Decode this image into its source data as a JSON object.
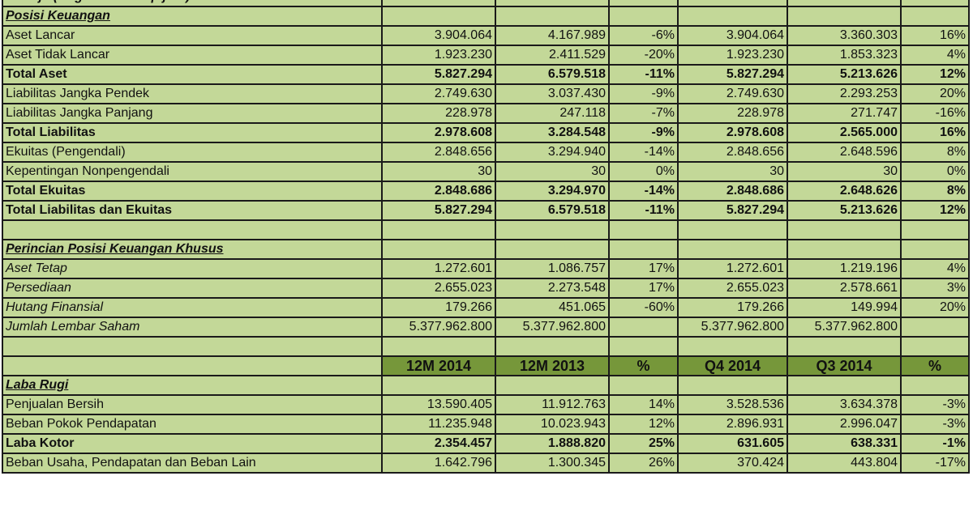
{
  "colors": {
    "cell_bg": "#c3d898",
    "header_bg": "#76973a",
    "grid": "#1a1a1a"
  },
  "rows": [
    {
      "type": "title",
      "label": "Kinerja (Angka dalam Rp juta)",
      "values": [
        "",
        "",
        "",
        "",
        "",
        ""
      ]
    },
    {
      "type": "section",
      "label": "Posisi Keuangan",
      "values": [
        "",
        "",
        "",
        "",
        "",
        ""
      ]
    },
    {
      "type": "normal",
      "label": "Aset Lancar",
      "values": [
        "3.904.064",
        "4.167.989",
        "-6%",
        "3.904.064",
        "3.360.303",
        "16%"
      ]
    },
    {
      "type": "normal",
      "label": "Aset Tidak Lancar",
      "values": [
        "1.923.230",
        "2.411.529",
        "-20%",
        "1.923.230",
        "1.853.323",
        "4%"
      ]
    },
    {
      "type": "bold",
      "label": "Total Aset",
      "values": [
        "5.827.294",
        "6.579.518",
        "-11%",
        "5.827.294",
        "5.213.626",
        "12%"
      ]
    },
    {
      "type": "normal",
      "label": "Liabilitas Jangka Pendek",
      "values": [
        "2.749.630",
        "3.037.430",
        "-9%",
        "2.749.630",
        "2.293.253",
        "20%"
      ]
    },
    {
      "type": "normal",
      "label": "Liabilitas Jangka Panjang",
      "values": [
        "228.978",
        "247.118",
        "-7%",
        "228.978",
        "271.747",
        "-16%"
      ]
    },
    {
      "type": "bold",
      "label": "Total Liabilitas",
      "values": [
        "2.978.608",
        "3.284.548",
        "-9%",
        "2.978.608",
        "2.565.000",
        "16%"
      ]
    },
    {
      "type": "normal",
      "label": "Ekuitas (Pengendali)",
      "values": [
        "2.848.656",
        "3.294.940",
        "-14%",
        "2.848.656",
        "2.648.596",
        "8%"
      ]
    },
    {
      "type": "normal",
      "label": "Kepentingan Nonpengendali",
      "values": [
        "30",
        "30",
        "0%",
        "30",
        "30",
        "0%"
      ]
    },
    {
      "type": "bold",
      "label": "Total Ekuitas",
      "values": [
        "2.848.686",
        "3.294.970",
        "-14%",
        "2.848.686",
        "2.648.626",
        "8%"
      ]
    },
    {
      "type": "bold",
      "label": "Total Liabilitas dan Ekuitas",
      "values": [
        "5.827.294",
        "6.579.518",
        "-11%",
        "5.827.294",
        "5.213.626",
        "12%"
      ]
    },
    {
      "type": "blank",
      "label": "",
      "values": [
        "",
        "",
        "",
        "",
        "",
        ""
      ]
    },
    {
      "type": "section",
      "label": "Perincian Posisi Keuangan Khusus",
      "values": [
        "",
        "",
        "",
        "",
        "",
        ""
      ]
    },
    {
      "type": "italic",
      "label": "Aset Tetap",
      "values": [
        "1.272.601",
        "1.086.757",
        "17%",
        "1.272.601",
        "1.219.196",
        "4%"
      ]
    },
    {
      "type": "italic",
      "label": "Persediaan",
      "values": [
        "2.655.023",
        "2.273.548",
        "17%",
        "2.655.023",
        "2.578.661",
        "3%"
      ]
    },
    {
      "type": "italic",
      "label": "Hutang Finansial",
      "values": [
        "179.266",
        "451.065",
        "-60%",
        "179.266",
        "149.994",
        "20%"
      ]
    },
    {
      "type": "italic",
      "label": "Jumlah Lembar Saham",
      "values": [
        "5.377.962.800",
        "5.377.962.800",
        "",
        "5.377.962.800",
        "5.377.962.800",
        ""
      ]
    },
    {
      "type": "blank",
      "label": "",
      "values": [
        "",
        "",
        "",
        "",
        "",
        ""
      ]
    },
    {
      "type": "header",
      "label": "",
      "values": [
        "12M 2014",
        "12M 2013",
        "%",
        "Q4 2014",
        "Q3 2014",
        "%"
      ]
    },
    {
      "type": "section",
      "label": "Laba Rugi",
      "values": [
        "",
        "",
        "",
        "",
        "",
        ""
      ]
    },
    {
      "type": "normal",
      "label": "Penjualan Bersih",
      "values": [
        "13.590.405",
        "11.912.763",
        "14%",
        "3.528.536",
        "3.634.378",
        "-3%"
      ]
    },
    {
      "type": "normal",
      "label": "Beban Pokok Pendapatan",
      "values": [
        "11.235.948",
        "10.023.943",
        "12%",
        "2.896.931",
        "2.996.047",
        "-3%"
      ]
    },
    {
      "type": "bold",
      "label": "Laba Kotor",
      "values": [
        "2.354.457",
        "1.888.820",
        "25%",
        "631.605",
        "638.331",
        "-1%"
      ]
    },
    {
      "type": "normal",
      "label": "Beban Usaha, Pendapatan dan Beban Lain",
      "values": [
        "1.642.796",
        "1.300.345",
        "26%",
        "370.424",
        "443.804",
        "-17%"
      ]
    }
  ]
}
